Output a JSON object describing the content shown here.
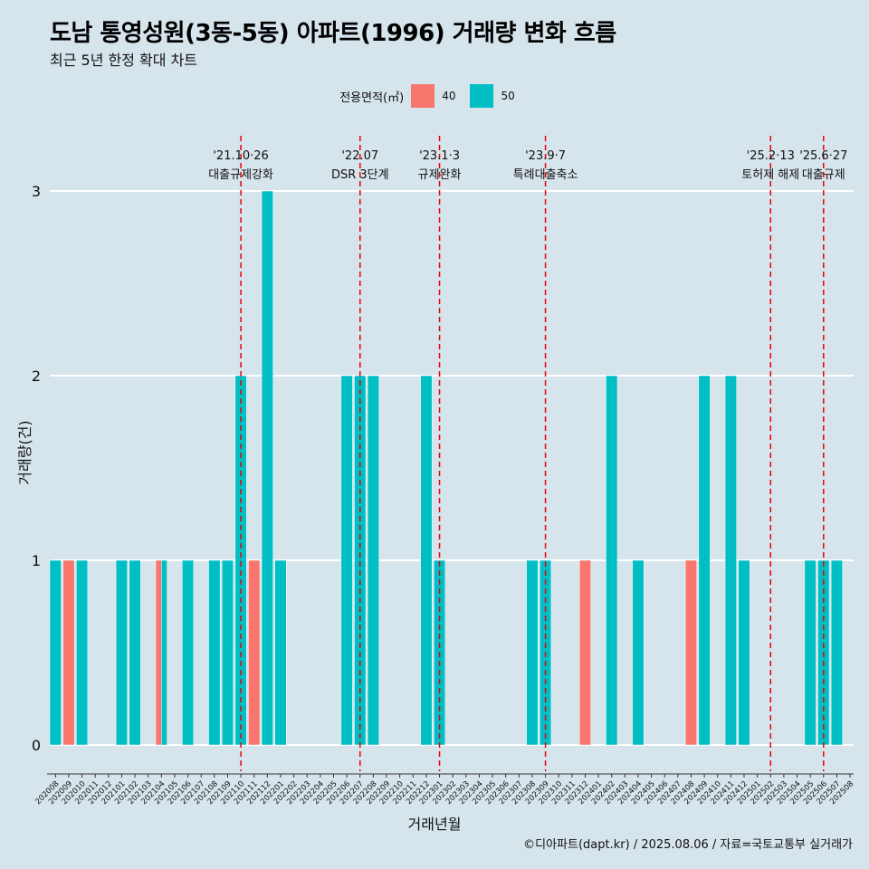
{
  "title": "도남 통영성원(3동-5동) 아파트(1996) 거래량 변화 흐름",
  "subtitle": "최근 5년 한정 확대 차트",
  "caption": "©디아파트(dapt.kr) / 2025.08.06 / 자료=국토교통부 실거래가",
  "colors": {
    "40": "#f8766d",
    "50": "#00bfc4",
    "background": "#d6e4ec",
    "grid": "#ffffff",
    "event_line": "#e8000b"
  },
  "chart_data": {
    "type": "bar",
    "xlabel": "거래년월",
    "ylabel": "거래량(건)",
    "ylim": [
      0,
      3
    ],
    "yticks": [
      0,
      1,
      2,
      3
    ],
    "legend": {
      "title": "전용면적(㎡)",
      "position": "top"
    },
    "categories": [
      "202008",
      "202009",
      "202010",
      "202011",
      "202012",
      "202101",
      "202102",
      "202103",
      "202104",
      "202105",
      "202106",
      "202107",
      "202108",
      "202109",
      "202110",
      "202111",
      "202112",
      "202201",
      "202202",
      "202203",
      "202204",
      "202205",
      "202206",
      "202207",
      "202208",
      "202209",
      "202210",
      "202211",
      "202212",
      "202301",
      "202302",
      "202303",
      "202304",
      "202305",
      "202306",
      "202307",
      "202308",
      "202309",
      "202310",
      "202311",
      "202312",
      "202401",
      "202402",
      "202403",
      "202404",
      "202405",
      "202406",
      "202407",
      "202408",
      "202409",
      "202410",
      "202411",
      "202412",
      "202501",
      "202502",
      "202503",
      "202504",
      "202505",
      "202506",
      "202507",
      "202508"
    ],
    "series": [
      {
        "name": "40",
        "values": [
          0,
          1,
          0,
          0,
          0,
          0,
          0,
          0,
          1,
          0,
          0,
          0,
          0,
          0,
          0,
          1,
          0,
          0,
          0,
          0,
          0,
          0,
          0,
          0,
          0,
          0,
          0,
          0,
          0,
          0,
          0,
          0,
          0,
          0,
          0,
          0,
          0,
          0,
          0,
          0,
          1,
          0,
          0,
          0,
          0,
          0,
          0,
          0,
          1,
          0,
          0,
          0,
          0,
          0,
          0,
          0,
          0,
          0,
          0,
          0,
          0
        ]
      },
      {
        "name": "50",
        "values": [
          1,
          0,
          1,
          0,
          0,
          1,
          1,
          0,
          1,
          0,
          1,
          0,
          1,
          1,
          2,
          0,
          3,
          1,
          0,
          0,
          0,
          0,
          2,
          2,
          2,
          0,
          0,
          0,
          2,
          1,
          0,
          0,
          0,
          0,
          0,
          0,
          1,
          1,
          0,
          0,
          0,
          0,
          2,
          0,
          1,
          0,
          0,
          0,
          0,
          2,
          0,
          2,
          1,
          0,
          0,
          0,
          0,
          1,
          1,
          1,
          0
        ]
      }
    ],
    "events": [
      {
        "month": "202110",
        "date": "'21.10·26",
        "label": "대출규제강화"
      },
      {
        "month": "202207",
        "date": "'22.07",
        "label": "DSR 3단계"
      },
      {
        "month": "202301",
        "date": "'23.1·3",
        "label": "규제완화"
      },
      {
        "month": "202309",
        "date": "'23.9·7",
        "label": "특례대출축소"
      },
      {
        "month": "202502",
        "date": "'25.2·13",
        "label": "토허제 해제"
      },
      {
        "month": "202506",
        "date": "'25.6·27",
        "label": "대출규제"
      }
    ]
  }
}
